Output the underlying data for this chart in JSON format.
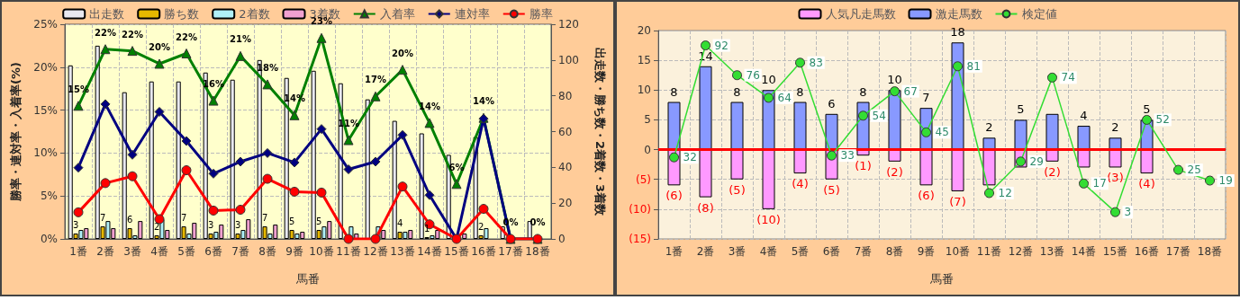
{
  "chart_data": [
    {
      "type": "bar",
      "xlabel": "馬番",
      "ylabel": "勝率・連対率・入着率(%)",
      "y2label": "出走数・勝ち数・2着数・3着数",
      "categories": [
        "1番",
        "2番",
        "3番",
        "4番",
        "5番",
        "6番",
        "7番",
        "8番",
        "9番",
        "10番",
        "11番",
        "12番",
        "13番",
        "14番",
        "15番",
        "16番",
        "17番",
        "18番"
      ],
      "ylim": [
        0,
        25
      ],
      "yticks": [
        {
          "value": 0,
          "label": "0%"
        },
        {
          "value": 5,
          "label": "5%"
        },
        {
          "value": 10,
          "label": "10%"
        },
        {
          "value": 15,
          "label": "15%"
        },
        {
          "value": 20,
          "label": "20%"
        },
        {
          "value": 25,
          "label": "25%"
        }
      ],
      "y2lim": [
        0,
        120
      ],
      "y2ticks": [
        0,
        20,
        40,
        60,
        80,
        100,
        120
      ],
      "grid": true,
      "legend": "top",
      "series": [
        {
          "name": "出走数",
          "color": "#e8e8f0",
          "axis": "y2",
          "values": [
            97,
            108,
            82,
            88,
            88,
            93,
            89,
            100,
            90,
            94,
            87,
            78,
            66,
            59,
            47,
            57,
            7,
            10
          ]
        },
        {
          "name": "勝ち数",
          "color": "#e6b800",
          "axis": "y2",
          "values": [
            3,
            7,
            6,
            2,
            7,
            3,
            3,
            7,
            5,
            5,
            0,
            0,
            4,
            1,
            0,
            2,
            0,
            0
          ],
          "value_labels": [
            "3",
            "7",
            "6",
            "2",
            "7",
            "3",
            "3",
            "7",
            "5",
            "5",
            null,
            null,
            "4",
            "1",
            null,
            "2",
            null,
            null
          ]
        },
        {
          "name": "2着数",
          "color": "#b0f0f8",
          "axis": "y2",
          "values": [
            5,
            10,
            2,
            11,
            3,
            4,
            5,
            3,
            3,
            7,
            7,
            7,
            4,
            2,
            0,
            6,
            0,
            0
          ]
        },
        {
          "name": "3着数",
          "color": "#f0a0d0",
          "axis": "y2",
          "values": [
            6,
            6,
            10,
            5,
            9,
            8,
            11,
            8,
            4,
            10,
            3,
            5,
            5,
            5,
            3,
            0,
            0,
            0
          ]
        },
        {
          "name": "入着率",
          "type": "line",
          "color": "#008000",
          "marker": "triangle",
          "values": [
            15.5,
            22.1,
            21.9,
            20.4,
            21.6,
            16.1,
            21.3,
            18.0,
            14.4,
            23.4,
            11.5,
            16.6,
            19.7,
            13.5,
            6.4,
            14.1,
            0,
            0
          ],
          "value_labels": [
            "15%",
            "22%",
            "22%",
            "20%",
            "22%",
            "16%",
            "21%",
            "18%",
            "14%",
            "23%",
            "11%",
            "17%",
            "20%",
            "14%",
            "6%",
            "14%",
            "0%",
            "0%"
          ]
        },
        {
          "name": "連対率",
          "type": "line",
          "color": "#000080",
          "marker": "diamond",
          "values": [
            8.3,
            15.7,
            9.8,
            14.8,
            11.4,
            7.6,
            9.0,
            10.0,
            8.9,
            12.8,
            8.1,
            9.0,
            12.1,
            5.1,
            0,
            14.0,
            0,
            0
          ]
        },
        {
          "name": "勝率",
          "type": "line",
          "color": "#ff0000",
          "marker": "circle",
          "values": [
            3.1,
            6.5,
            7.3,
            2.3,
            8.0,
            3.3,
            3.4,
            7.0,
            5.5,
            5.4,
            0,
            0,
            6.1,
            1.7,
            0,
            3.5,
            0,
            0
          ]
        }
      ]
    },
    {
      "type": "bar",
      "stacked": true,
      "xlabel": "馬番",
      "categories": [
        "1番",
        "2番",
        "3番",
        "4番",
        "5番",
        "6番",
        "7番",
        "8番",
        "9番",
        "10番",
        "11番",
        "12番",
        "13番",
        "14番",
        "15番",
        "16番",
        "17番",
        "18番"
      ],
      "ylim": [
        -15,
        20
      ],
      "yticks": [
        {
          "value": -15,
          "label": "(15)"
        },
        {
          "value": -10,
          "label": "(10)"
        },
        {
          "value": -5,
          "label": "(5)"
        },
        0,
        5,
        10,
        15,
        20
      ],
      "grid": true,
      "legend": "top",
      "ref_lines": [
        {
          "axis": "y",
          "value": 0,
          "color": "#ff0000"
        }
      ],
      "series": [
        {
          "name": "人気凡走馬数",
          "color": "#ff99ff",
          "values": [
            -6,
            -8,
            -5,
            -10,
            -4,
            -5,
            -1,
            -2,
            -6,
            -7,
            -6,
            -3,
            -2,
            -3,
            -3,
            -4,
            null,
            null
          ],
          "value_labels": [
            "(6)",
            "(8)",
            "(5)",
            "(10)",
            "(4)",
            "(5)",
            "(1)",
            "(2)",
            "(6)",
            "(7)",
            null,
            null,
            "(2)",
            null,
            "(3)",
            "(4)",
            null,
            null
          ]
        },
        {
          "name": "激走馬数",
          "color": "#8899ff",
          "values": [
            8,
            14,
            8,
            10,
            8,
            6,
            8,
            10,
            7,
            18,
            2,
            5,
            6,
            4,
            2,
            5,
            null,
            null
          ],
          "value_labels": [
            "8",
            "14",
            "8",
            "10",
            "8",
            "6",
            "8",
            "10",
            "7",
            "18",
            "2",
            "5",
            null,
            "4",
            "2",
            "5",
            null,
            null
          ]
        },
        {
          "name": "検定値",
          "type": "line",
          "color": "#33dd33",
          "marker": "circle",
          "values": [
            -1.3,
            17.5,
            12.5,
            8.7,
            14.6,
            -1.0,
            5.7,
            9.8,
            2.9,
            14.0,
            -7.3,
            -2.0,
            12.1,
            -5.7,
            -10.5,
            5.0,
            -3.4,
            -5.2
          ]
        }
      ],
      "annotations": [
        {
          "text": "32",
          "x": "1番",
          "y": -1.3
        },
        {
          "text": "92",
          "x": "2番",
          "y": 17.5
        },
        {
          "text": "76",
          "x": "3番",
          "y": 12.5
        },
        {
          "text": "64",
          "x": "4番",
          "y": 8.7
        },
        {
          "text": "83",
          "x": "5番",
          "y": 14.6
        },
        {
          "text": "33",
          "x": "6番",
          "y": -1.0
        },
        {
          "text": "54",
          "x": "7番",
          "y": 5.7
        },
        {
          "text": "67",
          "x": "8番",
          "y": 9.8
        },
        {
          "text": "45",
          "x": "9番",
          "y": 2.9
        },
        {
          "text": "81",
          "x": "10番",
          "y": 14.0
        },
        {
          "text": "12",
          "x": "11番",
          "y": -7.3
        },
        {
          "text": "29",
          "x": "12番",
          "y": -2.0
        },
        {
          "text": "74",
          "x": "13番",
          "y": 12.1
        },
        {
          "text": "17",
          "x": "14番",
          "y": -5.7
        },
        {
          "text": "3",
          "x": "15番",
          "y": -10.5
        },
        {
          "text": "52",
          "x": "16番",
          "y": 5.0
        },
        {
          "text": "25",
          "x": "17番",
          "y": -3.4
        },
        {
          "text": "19",
          "x": "18番",
          "y": -5.2
        }
      ]
    }
  ]
}
